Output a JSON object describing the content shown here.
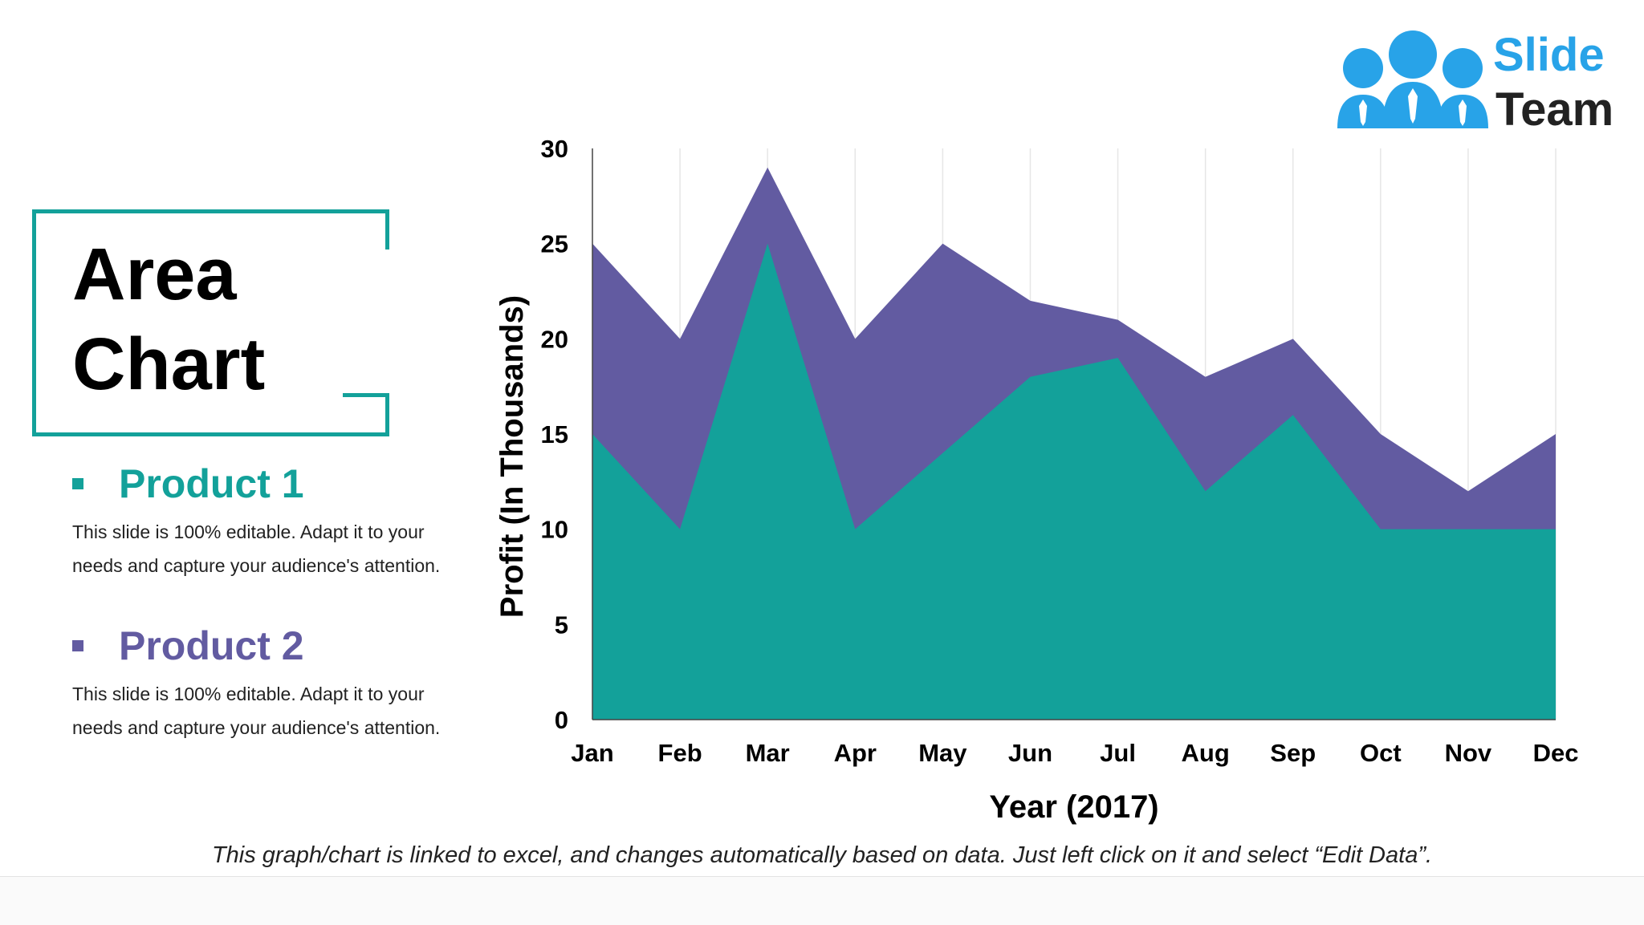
{
  "slide": {
    "title_line1": "Area",
    "title_line2": "Chart",
    "footnote": "This graph/chart is linked to excel, and changes automatically based on data. Just left click on it and select “Edit Data”."
  },
  "logo": {
    "line1": "Slide",
    "line2": "Team",
    "color": "#28a3e8"
  },
  "legend": [
    {
      "title": "Product 1",
      "color": "#13a19a",
      "desc_line1": "This slide is 100% editable. Adapt it to your",
      "desc_line2": "needs and capture your audience's attention."
    },
    {
      "title": "Product 2",
      "color": "#625ba1",
      "desc_line1": "This slide is 100% editable. Adapt it to your",
      "desc_line2": "needs and capture your audience's attention."
    }
  ],
  "chart_data": {
    "type": "area",
    "stacked": false,
    "title": "",
    "xlabel": "Year (2017)",
    "ylabel": "Profit (In Thousands)",
    "categories": [
      "Jan",
      "Feb",
      "Mar",
      "Apr",
      "May",
      "Jun",
      "Jul",
      "Aug",
      "Sep",
      "Oct",
      "Nov",
      "Dec"
    ],
    "ylim": [
      0,
      30
    ],
    "yticks": [
      0,
      5,
      10,
      15,
      20,
      25,
      30
    ],
    "grid": "vertical",
    "series": [
      {
        "name": "Product 2",
        "color": "#625ba1",
        "values": [
          25,
          20,
          29,
          20,
          25,
          22,
          21,
          18,
          20,
          15,
          12,
          15
        ]
      },
      {
        "name": "Product 1",
        "color": "#13a19a",
        "values": [
          15,
          10,
          25,
          10,
          14,
          18,
          19,
          12,
          16,
          10,
          10,
          10
        ]
      }
    ]
  }
}
